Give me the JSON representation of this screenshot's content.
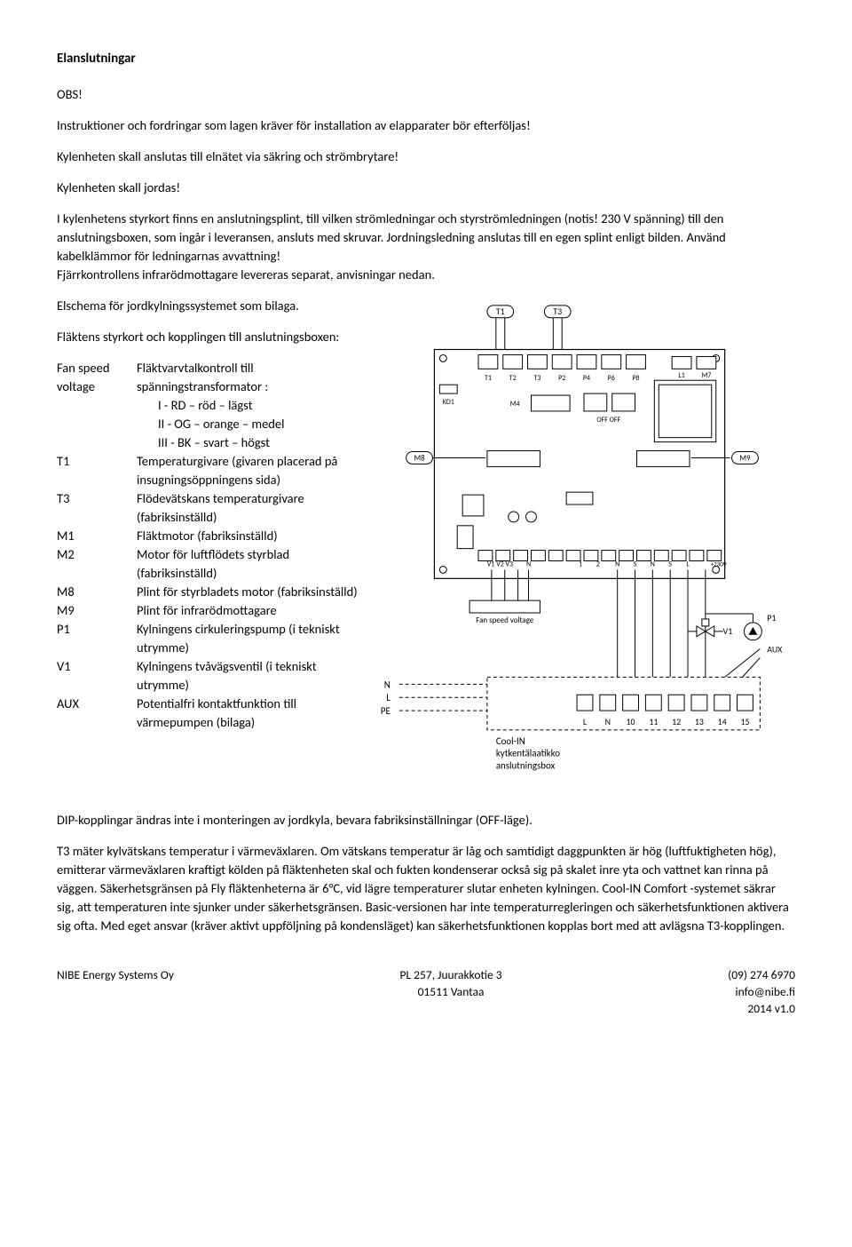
{
  "title": "Elanslutningar",
  "obs": "OBS!",
  "p1": "Instruktioner och fordringar som lagen kräver för installation av elapparater bör efterföljas!",
  "p2": "Kylenheten skall anslutas till elnätet via säkring och strömbrytare!",
  "p3": "Kylenheten skall jordas!",
  "p4": "I kylenhetens styrkort finns en anslutningsplint, till vilken strömledningar och styrströmledningen (notis! 230 V spänning) till den anslutningsboxen, som ingår i leveransen, ansluts med skruvar. Jordningsledning anslutas till en egen splint enligt bilden. Använd kabelklämmor för ledningarnas avvattning!",
  "p5": "Fjärrkontrollens infrarödmottagare levereras separat, anvisningar nedan.",
  "p6": "Elschema för jordkylningssystemet som bilaga.",
  "p7": "Fläktens styrkort och kopplingen till anslutningsboxen:",
  "defs": [
    {
      "t": "Fan speed voltage",
      "d": "Fläktvarvtalkontroll till spänningstransformator :",
      "sub": [
        "I - RD – röd – lägst",
        "II - OG – orange – medel",
        "III - BK – svart – högst"
      ]
    },
    {
      "t": "T1",
      "d": "Temperaturgivare (givaren placerad på insugningsöppningens sida)"
    },
    {
      "t": "T3",
      "d": "Flödevätskans temperaturgivare (fabriksinställd)"
    },
    {
      "t": "M1",
      "d": "Fläktmotor (fabriksinställd)"
    },
    {
      "t": "M2",
      "d": "Motor för luftflödets styrblad (fabriksinställd)"
    },
    {
      "t": "M8",
      "d": "Plint för styrbladets motor (fabriksinställd)"
    },
    {
      "t": "M9",
      "d": "Plint för infrarödmottagare"
    },
    {
      "t": "P1",
      "d": "Kylningens cirkuleringspump (i tekniskt utrymme)"
    },
    {
      "t": "V1",
      "d": "Kylningens tvåvägsventil (i tekniskt utrymme)"
    },
    {
      "t": "AUX",
      "d": "Potentialfri kontaktfunktion till värmepumpen (bilaga)"
    }
  ],
  "p8": "DIP-kopplingar ändras inte i monteringen av jordkyla, bevara fabriksinställningar (OFF-läge).",
  "p9": "T3 mäter kylvätskans temperatur i värmeväxlaren. Om vätskans temperatur är låg och samtidigt daggpunkten är hög (luftfuktigheten hög), emitterar värmeväxlaren kraftigt kölden på fläktenheten skal och fukten kondenserar också sig på skalet inre yta och vattnet kan rinna på väggen. Säkerhetsgränsen på Fly fläktenheterna är 6°C, vid lägre temperaturer slutar enheten kylningen. Cool-IN Comfort -systemet säkrar sig, att temperaturen inte sjunker under säkerhetsgränsen. Basic-versionen har inte temperaturregleringen och säkerhetsfunktionen aktivera sig ofta. Med eget ansvar (kräver aktivt uppföljning på kondensläget) kan säkerhetsfunktionen kopplas bort med att avlägsna T3-kopplingen.",
  "footer": {
    "left": "NIBE Energy Systems Oy",
    "mid1": "PL 257, Juurakkotie 3",
    "mid2": "01511 Vantaa",
    "r1": "(09) 274 6970",
    "r2": "info@nibe.fi",
    "r3": "2014 v1.0"
  },
  "diagram": {
    "stroke": "#000",
    "bg": "#fff",
    "top_labels": [
      "T1",
      "T3"
    ],
    "board_conns": [
      "T1",
      "T2",
      "T3",
      "P2",
      "P4",
      "P6",
      "P8"
    ],
    "board_right": [
      "L1",
      "M7"
    ],
    "board_left": "KD1",
    "m4": "M4",
    "off": "OFF  OFF",
    "m8": "M8",
    "m9": "M9",
    "bottom_row": [
      "V1 V2 V3",
      "N",
      "1",
      "2",
      "N",
      "S",
      "N",
      "S",
      "L",
      "+230V"
    ],
    "fs_label": "Fan speed voltage",
    "nlpe": [
      "N",
      "L",
      "PE"
    ],
    "box_line1": "Cool-IN",
    "box_line2": "kytkentälaatikko",
    "box_line3": "anslutningsbox",
    "terminals": [
      "L",
      "N",
      "10",
      "11",
      "12",
      "13",
      "14",
      "15"
    ],
    "v1": "V1",
    "p1": "P1",
    "aux": "AUX"
  }
}
